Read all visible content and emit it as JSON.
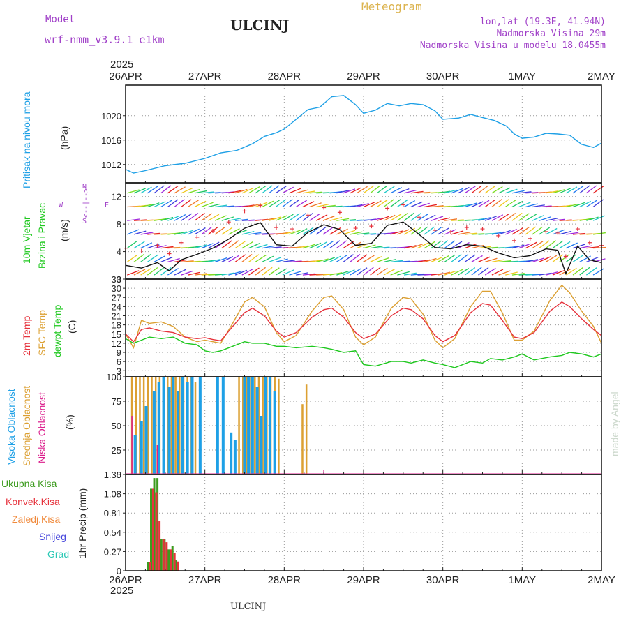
{
  "header": {
    "model_label": "Model",
    "model_name": "wrf-nmm_v3.9.1 e1km",
    "title": "ULCINJ",
    "meteogram": "Meteogram",
    "lonlat": "lon,lat (19.3E, 41.94N)",
    "elevation": "Nadmorska Visina 29m",
    "model_elevation": "Nadmorska Visina u modelu 18.0455m",
    "year_top": "2025",
    "year_bottom": "2025",
    "footer": "ULCINJ",
    "credit": "made by Angel"
  },
  "colors": {
    "pressure": "#1ea0e6",
    "temp2m": "#e6323c",
    "sfc": "#dca032",
    "dewpt": "#1ec81e",
    "high_cloud": "#1ea0e6",
    "mid_cloud": "#dca032",
    "low_cloud": "#dc1e8c",
    "total_precip": "#3c9b1e",
    "conv_precip": "#e6323c",
    "purple": "#a040c8"
  },
  "x_axis": {
    "labels": [
      "26APR",
      "27APR",
      "28APR",
      "29APR",
      "30APR",
      "1MAY",
      "2MAY"
    ]
  },
  "panels": {
    "pressure": {
      "label1": "Pritisak na nivou mora",
      "unit": "(hPa)"
    },
    "wind": {
      "label1": "10m Vjetar",
      "label2": "Brzina i Pravac",
      "unit": "(m/s)",
      "compass_n": "N",
      "compass_s": "S",
      "compass_w": "W",
      "compass_e": "E",
      "compass_mid": "<--|-->"
    },
    "temp": {
      "label1": "2m Temp",
      "label2": "SFC Temp",
      "label3": "dewpt Temp",
      "unit": "(C)"
    },
    "cloud": {
      "label1": "Visoka Oblacnost",
      "label2": "Srednja Oblacnost",
      "label3": "Niska Oblacnost",
      "unit": "(%)"
    },
    "precip": {
      "label1": "Ukupna Kisa",
      "label2": "Konvek.Kisa",
      "label3": "Zaledj.Kisa",
      "label4": "Snijeg",
      "label5": "Grad",
      "unit": "1hr Precip (mm)"
    }
  },
  "chart_data": [
    {
      "type": "line",
      "panel": "pressure",
      "ylabel": "(hPa)",
      "yticks": [
        1012,
        1016,
        1020
      ],
      "ylim": [
        1009,
        1025
      ],
      "x_days": [
        0,
        0.1,
        0.25,
        0.5,
        0.75,
        1.0,
        1.2,
        1.4,
        1.6,
        1.75,
        1.9,
        2.0,
        2.15,
        2.3,
        2.45,
        2.6,
        2.75,
        2.9,
        3.0,
        3.15,
        3.3,
        3.45,
        3.6,
        3.75,
        3.9,
        4.0,
        4.2,
        4.35,
        4.5,
        4.65,
        4.8,
        4.9,
        5.0,
        5.15,
        5.3,
        5.45,
        5.6,
        5.75,
        5.9,
        6.0
      ],
      "series": [
        {
          "values": [
            1011.2,
            1010.6,
            1011.0,
            1011.8,
            1012.2,
            1013.0,
            1013.9,
            1014.3,
            1015.4,
            1016.6,
            1017.2,
            1017.8,
            1019.4,
            1021.0,
            1021.4,
            1023.1,
            1023.3,
            1021.8,
            1020.4,
            1020.9,
            1022.0,
            1021.6,
            1022.0,
            1021.8,
            1020.8,
            1019.4,
            1019.6,
            1020.2,
            1019.7,
            1019.2,
            1018.3,
            1017.0,
            1016.3,
            1016.5,
            1017.1,
            1017.0,
            1016.8,
            1015.3,
            1014.8,
            1015.5
          ]
        }
      ]
    },
    {
      "type": "line",
      "panel": "wind",
      "ylabel": "(m/s)",
      "yticks": [
        0,
        4,
        8,
        12
      ],
      "ylim": [
        0,
        14
      ],
      "x_days": [
        0,
        0.2,
        0.4,
        0.55,
        0.7,
        0.9,
        1.1,
        1.3,
        1.5,
        1.7,
        1.9,
        2.1,
        2.3,
        2.5,
        2.7,
        2.9,
        3.1,
        3.3,
        3.5,
        3.7,
        3.9,
        4.1,
        4.3,
        4.5,
        4.7,
        4.9,
        5.1,
        5.3,
        5.45,
        5.55,
        5.7,
        5.85,
        6.0
      ],
      "series": [
        {
          "name": "wind speed",
          "values": [
            2.0,
            1.6,
            2.4,
            1.2,
            2.8,
            3.6,
            4.5,
            5.8,
            7.4,
            8.2,
            5.0,
            4.8,
            6.8,
            7.9,
            7.2,
            4.9,
            5.2,
            7.8,
            8.3,
            6.5,
            4.6,
            4.4,
            5.0,
            4.8,
            3.8,
            3.1,
            3.4,
            4.4,
            4.2,
            0.8,
            4.8,
            2.8,
            2.4
          ]
        }
      ]
    },
    {
      "type": "line",
      "panel": "temp",
      "ylabel": "(C)",
      "yticks": [
        3,
        6,
        9,
        12,
        15,
        18,
        21,
        24,
        27,
        30,
        33
      ],
      "ylim": [
        1,
        33
      ],
      "x_days": [
        0,
        0.1,
        0.2,
        0.3,
        0.45,
        0.6,
        0.75,
        0.9,
        1.0,
        1.1,
        1.2,
        1.35,
        1.5,
        1.6,
        1.75,
        1.9,
        2.0,
        2.15,
        2.35,
        2.5,
        2.6,
        2.75,
        2.9,
        3.0,
        3.15,
        3.35,
        3.5,
        3.6,
        3.75,
        3.9,
        4.0,
        4.15,
        4.35,
        4.5,
        4.6,
        4.75,
        4.9,
        5.0,
        5.15,
        5.35,
        5.5,
        5.6,
        5.75,
        5.9,
        6.0
      ],
      "series": [
        {
          "name": "2m Temp",
          "values": [
            15.0,
            12.5,
            16.5,
            17.0,
            16.0,
            15.5,
            14.0,
            13.5,
            13.8,
            13.2,
            12.8,
            17.5,
            22.0,
            23.5,
            21.0,
            16.0,
            14.0,
            15.5,
            20.5,
            23.0,
            23.5,
            20.5,
            15.5,
            13.5,
            15.0,
            21.0,
            23.5,
            23.0,
            20.0,
            14.5,
            12.5,
            14.5,
            22.0,
            25.0,
            24.5,
            19.5,
            14.0,
            13.5,
            15.5,
            22.5,
            25.5,
            24.0,
            20.0,
            16.5,
            14.5
          ]
        },
        {
          "name": "SFC Temp",
          "values": [
            15.0,
            10.5,
            19.5,
            18.5,
            19.0,
            17.5,
            14.0,
            12.5,
            13.0,
            12.5,
            12.0,
            18.5,
            25.5,
            27.0,
            24.0,
            15.5,
            12.5,
            14.5,
            22.5,
            27.0,
            27.5,
            23.0,
            14.0,
            11.5,
            14.0,
            23.5,
            27.0,
            26.5,
            21.5,
            13.0,
            10.5,
            13.5,
            24.0,
            29.0,
            29.0,
            22.0,
            13.0,
            13.0,
            16.0,
            26.0,
            31.0,
            28.5,
            22.5,
            17.5,
            12.0
          ]
        },
        {
          "name": "dewpt Temp",
          "values": [
            13.5,
            12.0,
            13.0,
            14.0,
            13.5,
            14.0,
            12.0,
            11.5,
            9.5,
            9.0,
            9.5,
            11.0,
            12.5,
            12.0,
            12.0,
            11.0,
            11.0,
            10.5,
            11.0,
            10.5,
            10.0,
            9.0,
            9.5,
            5.0,
            4.5,
            6.0,
            6.0,
            5.5,
            6.5,
            5.5,
            5.0,
            4.0,
            6.0,
            5.5,
            7.0,
            6.5,
            7.5,
            8.5,
            6.5,
            7.5,
            8.0,
            9.0,
            8.5,
            7.5,
            8.5
          ]
        }
      ]
    },
    {
      "type": "bar",
      "panel": "cloud",
      "ylabel": "(%)",
      "yticks": [
        0,
        25,
        50,
        75,
        100
      ],
      "ylim": [
        0,
        100
      ],
      "series": [
        {
          "name": "Srednja Oblacnost",
          "x_days": [
            0.08,
            0.13,
            0.18,
            0.23,
            0.28,
            0.33,
            0.38,
            0.43,
            0.48,
            0.53,
            0.58,
            0.63,
            0.68,
            0.73,
            0.78,
            0.83,
            0.88,
            1.43,
            1.48,
            1.53,
            1.58,
            1.63,
            1.68,
            1.73,
            1.78,
            1.83,
            1.88,
            1.93,
            2.23,
            2.28
          ],
          "values": [
            100,
            100,
            100,
            100,
            100,
            100,
            100,
            100,
            100,
            100,
            100,
            100,
            100,
            100,
            100,
            100,
            95,
            100,
            100,
            100,
            100,
            100,
            100,
            100,
            100,
            100,
            100,
            98,
            72,
            92
          ]
        },
        {
          "name": "Visoka Oblacnost",
          "x_days": [
            0.12,
            0.2,
            0.26,
            0.36,
            0.42,
            0.48,
            0.55,
            0.6,
            0.66,
            0.72,
            0.78,
            0.84,
            0.94,
            1.16,
            1.23,
            1.33,
            1.38,
            1.5,
            1.55,
            1.6,
            1.66,
            1.71,
            1.76,
            1.82,
            1.88
          ],
          "values": [
            40,
            55,
            70,
            85,
            95,
            100,
            90,
            100,
            85,
            100,
            95,
            100,
            100,
            100,
            100,
            43,
            35,
            100,
            100,
            100,
            90,
            60,
            100,
            100,
            85
          ]
        },
        {
          "name": "Niska Oblacnost",
          "x_days": [
            0.08,
            0.4,
            2.5
          ],
          "values": [
            60,
            30,
            5
          ]
        }
      ]
    },
    {
      "type": "bar",
      "panel": "precip",
      "ylabel": "1hr Precip (mm)",
      "yticks": [
        0,
        0.27,
        0.54,
        0.81,
        1.08,
        1.35
      ],
      "ylim": [
        0,
        1.35
      ],
      "series": [
        {
          "name": "Ukupna Kisa",
          "x_days": [
            0.29,
            0.33,
            0.37,
            0.41,
            0.46,
            0.5,
            0.55,
            0.6,
            0.64
          ],
          "values": [
            0.12,
            1.15,
            1.3,
            1.3,
            0.45,
            0.45,
            0.3,
            0.35,
            0.15
          ]
        },
        {
          "name": "Konvek.Kisa",
          "x_days": [
            0.29,
            0.33,
            0.37,
            0.41,
            0.46,
            0.5,
            0.55,
            0.6,
            0.64
          ],
          "values": [
            0.12,
            1.15,
            1.1,
            0.7,
            0.45,
            0.4,
            0.3,
            0.25,
            0.13
          ]
        }
      ]
    }
  ]
}
